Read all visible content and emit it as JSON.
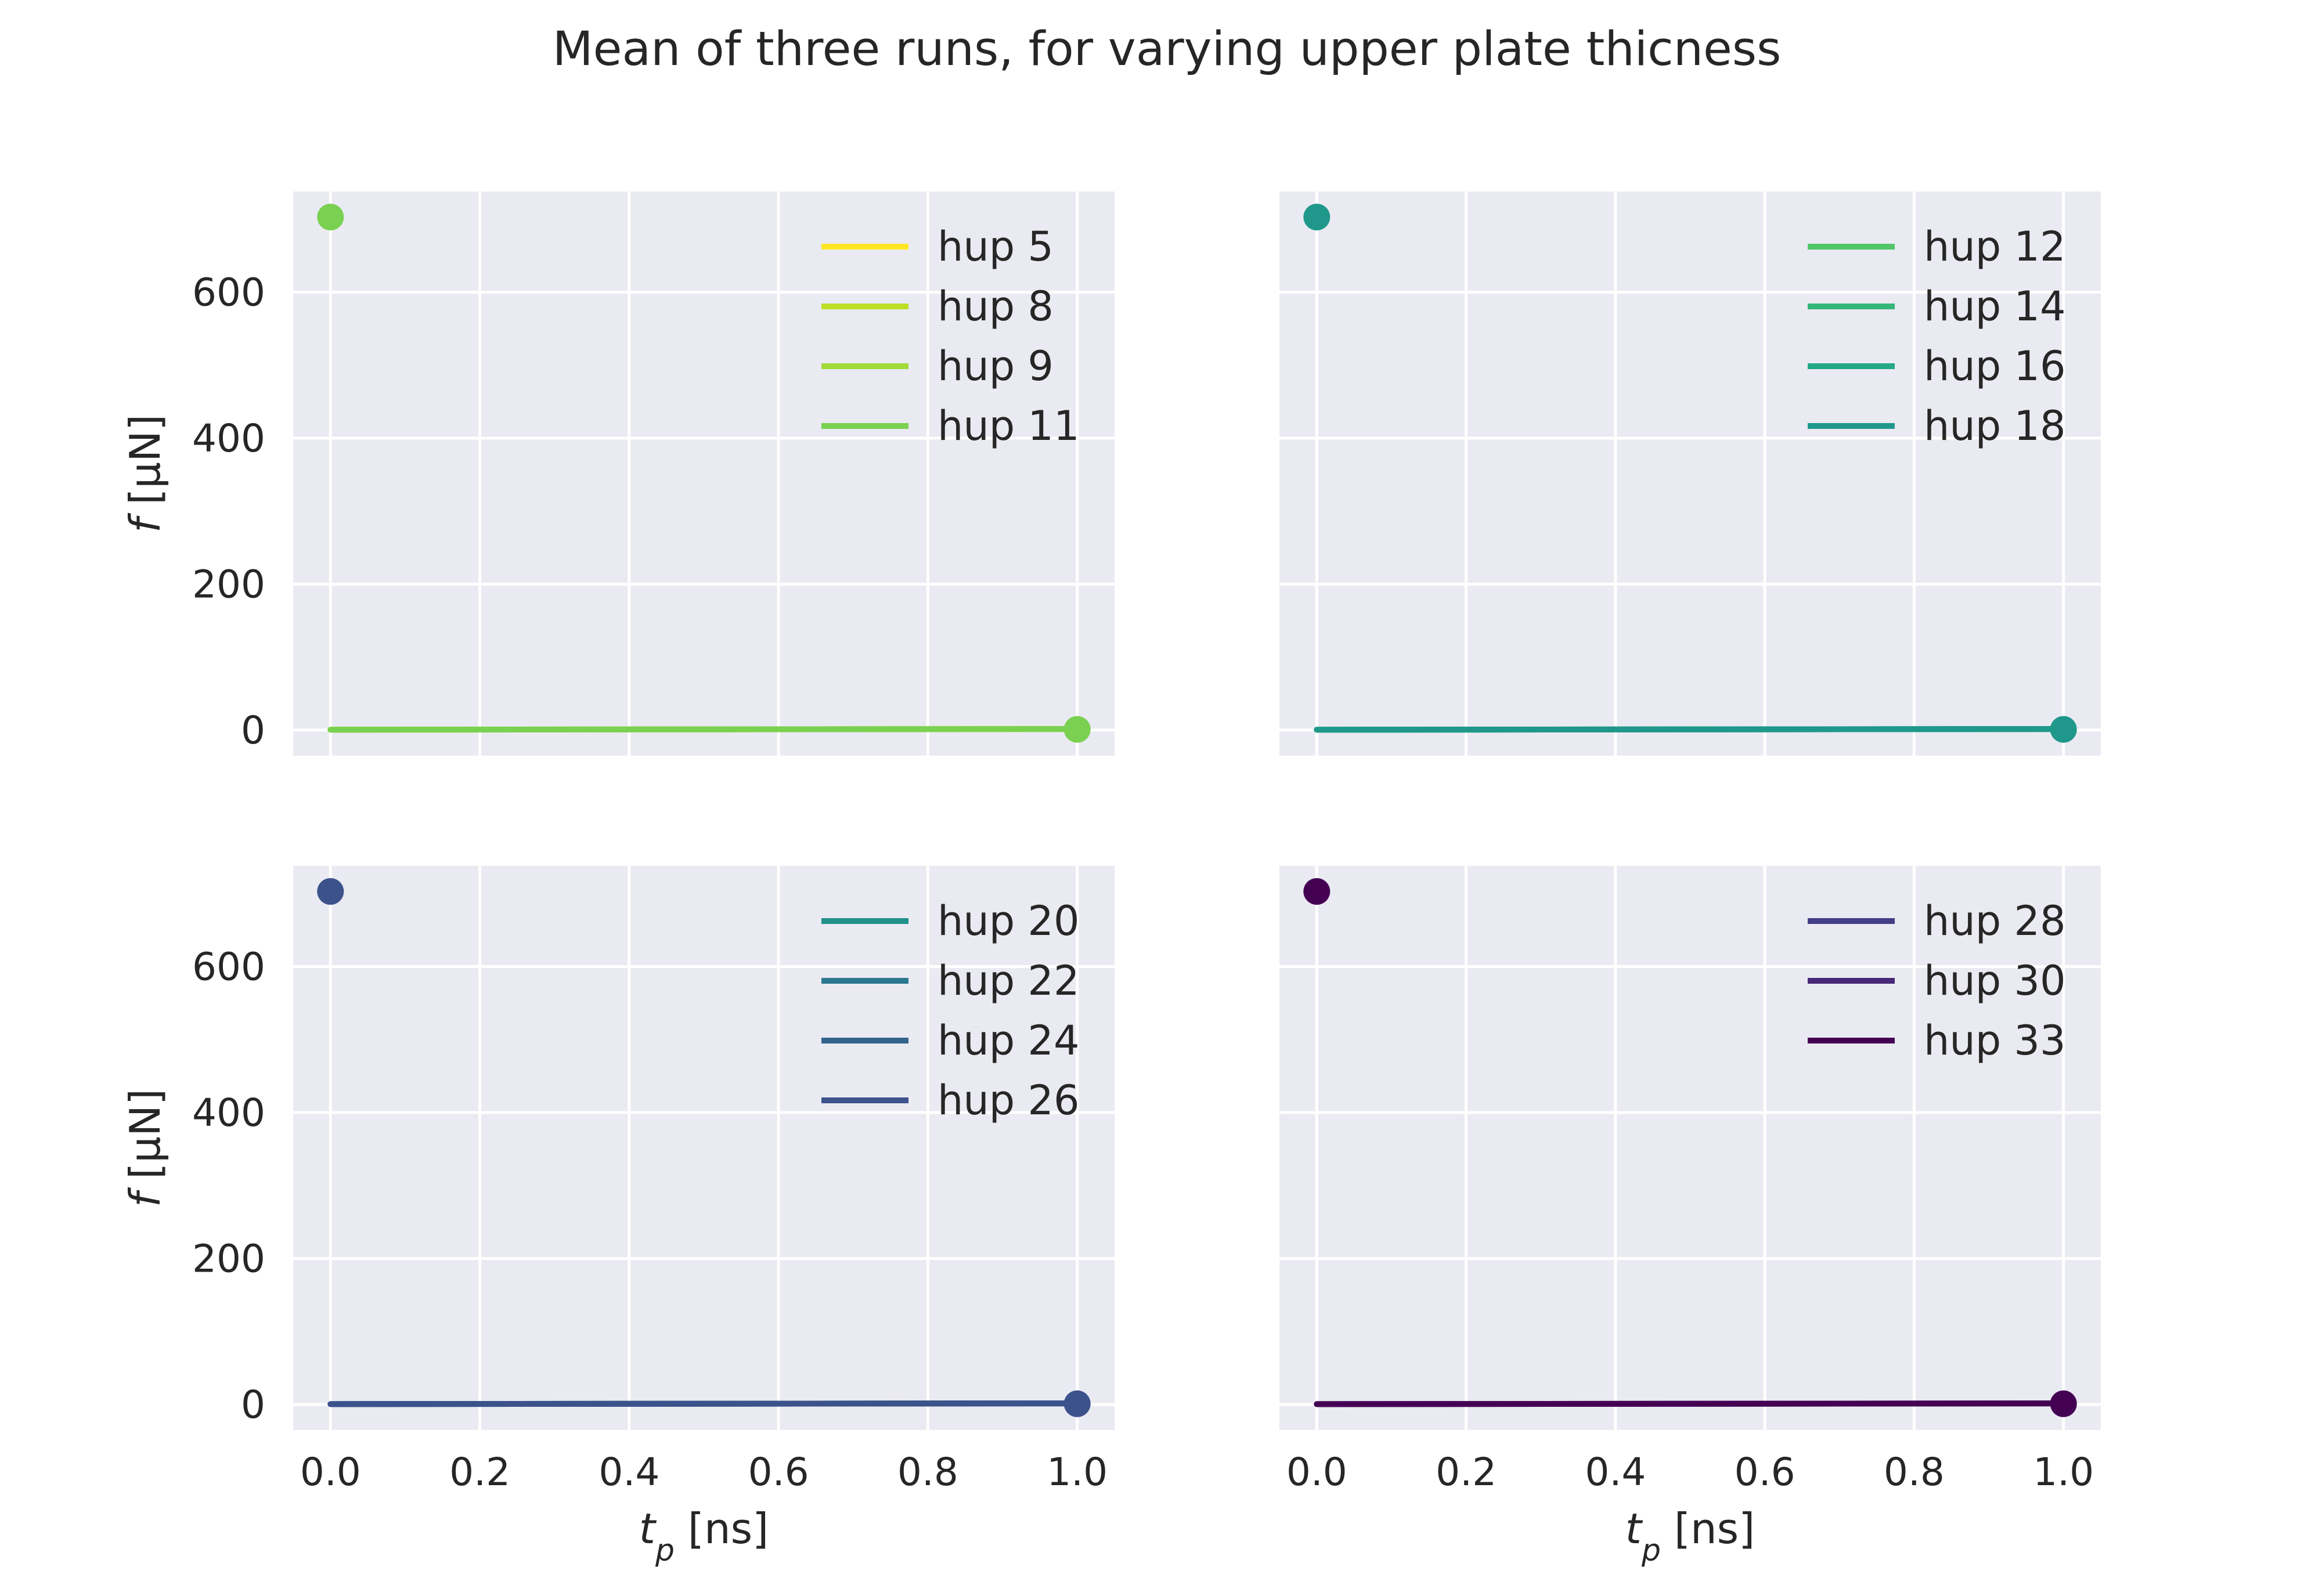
{
  "chart_data": {
    "title": "Mean of three runs, for varying upper plate thicness",
    "type": "line",
    "xlabel": "t_p [ns]",
    "ylabel": "f [μN]",
    "xlim": [
      -0.05,
      1.05
    ],
    "ylim": [
      -35,
      738
    ],
    "xticks": [
      0.0,
      0.2,
      0.4,
      0.6,
      0.8,
      1.0
    ],
    "xtick_labels": [
      "0.0",
      "0.2",
      "0.4",
      "0.6",
      "0.8",
      "1.0"
    ],
    "yticks": [
      0,
      200,
      400,
      600
    ],
    "ytick_labels": [
      "0",
      "200",
      "400",
      "600"
    ],
    "grid": true,
    "legend_placement": "upper right",
    "panels": [
      {
        "id": "top-left",
        "series": [
          {
            "name": "hup 5",
            "color": "#fde725",
            "x": [
              0.0,
              1.0
            ],
            "y": [
              0.5,
              1.5
            ]
          },
          {
            "name": "hup 8",
            "color": "#bddf26",
            "x": [
              0.0,
              1.0
            ],
            "y": [
              0.5,
              1.5
            ]
          },
          {
            "name": "hup 9",
            "color": "#a0da39",
            "x": [
              0.0,
              1.0
            ],
            "y": [
              0.5,
              1.5
            ]
          },
          {
            "name": "hup 11",
            "color": "#7ad151",
            "x": [
              0.0,
              1.0
            ],
            "y": [
              0.5,
              1.5
            ]
          }
        ],
        "markers": {
          "color": "#7ad151",
          "points": [
            {
              "x": 0.0,
              "y": 703
            },
            {
              "x": 1.0,
              "y": 1
            }
          ]
        }
      },
      {
        "id": "top-right",
        "series": [
          {
            "name": "hup 12",
            "color": "#52c569",
            "x": [
              0.0,
              1.0
            ],
            "y": [
              0.5,
              1.5
            ]
          },
          {
            "name": "hup 14",
            "color": "#35b779",
            "x": [
              0.0,
              1.0
            ],
            "y": [
              0.5,
              1.5
            ]
          },
          {
            "name": "hup 16",
            "color": "#22a884",
            "x": [
              0.0,
              1.0
            ],
            "y": [
              0.5,
              1.5
            ]
          },
          {
            "name": "hup 18",
            "color": "#1f988b",
            "x": [
              0.0,
              1.0
            ],
            "y": [
              0.5,
              1.5
            ]
          }
        ],
        "markers": {
          "color": "#1f988b",
          "points": [
            {
              "x": 0.0,
              "y": 703
            },
            {
              "x": 1.0,
              "y": 1
            }
          ]
        }
      },
      {
        "id": "bottom-left",
        "series": [
          {
            "name": "hup 20",
            "color": "#21918c",
            "x": [
              0.0,
              1.0
            ],
            "y": [
              0.5,
              1.5
            ]
          },
          {
            "name": "hup 22",
            "color": "#2a788e",
            "x": [
              0.0,
              1.0
            ],
            "y": [
              0.5,
              1.5
            ]
          },
          {
            "name": "hup 24",
            "color": "#33638d",
            "x": [
              0.0,
              1.0
            ],
            "y": [
              0.5,
              1.5
            ]
          },
          {
            "name": "hup 26",
            "color": "#3b528b",
            "x": [
              0.0,
              1.0
            ],
            "y": [
              0.5,
              1.5
            ]
          }
        ],
        "markers": {
          "color": "#3b528b",
          "points": [
            {
              "x": 0.0,
              "y": 703
            },
            {
              "x": 1.0,
              "y": 1
            }
          ]
        }
      },
      {
        "id": "bottom-right",
        "series": [
          {
            "name": "hup 28",
            "color": "#433e85",
            "x": [
              0.0,
              1.0
            ],
            "y": [
              0.5,
              1.5
            ]
          },
          {
            "name": "hup 30",
            "color": "#482878",
            "x": [
              0.0,
              1.0
            ],
            "y": [
              0.5,
              1.5
            ]
          },
          {
            "name": "hup 33",
            "color": "#440154",
            "x": [
              0.0,
              1.0
            ],
            "y": [
              0.5,
              1.5
            ]
          }
        ],
        "markers": {
          "color": "#440154",
          "points": [
            {
              "x": 0.0,
              "y": 703
            },
            {
              "x": 1.0,
              "y": 1
            }
          ]
        }
      }
    ]
  }
}
